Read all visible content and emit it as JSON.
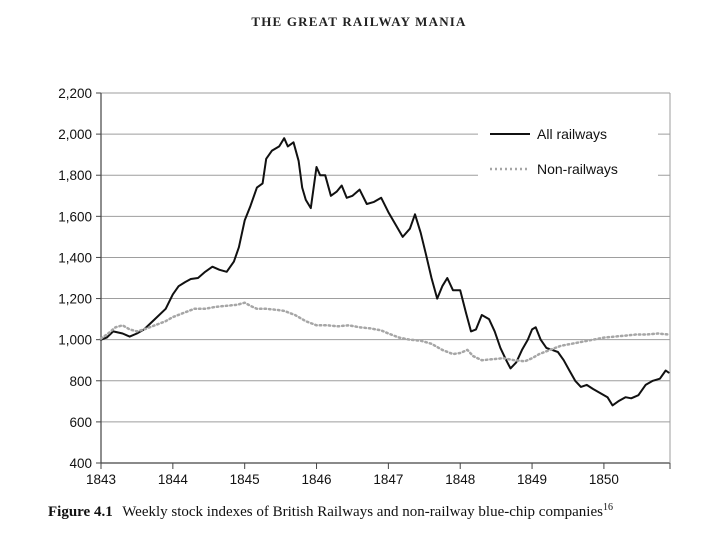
{
  "header": {
    "running_title": "THE GREAT RAILWAY MANIA"
  },
  "caption": {
    "figure_label": "Figure 4.1",
    "text": "Weekly stock indexes of British Railways and non-railway blue-chip companies",
    "footnote": "16"
  },
  "colors": {
    "railways": "#111111",
    "non_railways": "#a6a6a6",
    "grid": "#9e9e9e",
    "axis": "#444444"
  },
  "chart_data": {
    "type": "line",
    "title": "",
    "xlabel": "",
    "ylabel": "",
    "xlim": [
      1843,
      1850.92
    ],
    "ylim": [
      400,
      2200
    ],
    "x_ticks": [
      "1843",
      "1844",
      "1845",
      "1846",
      "1847",
      "1848",
      "1849",
      "1850"
    ],
    "y_ticks": [
      "400",
      "600",
      "800",
      "1,000",
      "1,200",
      "1,400",
      "1,600",
      "1,800",
      "2,000",
      "2,200"
    ],
    "grid": "horizontal",
    "legend": "top-right",
    "series": [
      {
        "name": "All railways",
        "style": "solid",
        "points": [
          [
            1843.0,
            1000
          ],
          [
            1843.08,
            1010
          ],
          [
            1843.17,
            1040
          ],
          [
            1843.3,
            1030
          ],
          [
            1843.4,
            1015
          ],
          [
            1843.5,
            1030
          ],
          [
            1843.6,
            1050
          ],
          [
            1843.75,
            1100
          ],
          [
            1843.9,
            1150
          ],
          [
            1844.0,
            1220
          ],
          [
            1844.08,
            1260
          ],
          [
            1844.17,
            1280
          ],
          [
            1844.25,
            1295
          ],
          [
            1844.35,
            1300
          ],
          [
            1844.45,
            1330
          ],
          [
            1844.55,
            1355
          ],
          [
            1844.65,
            1340
          ],
          [
            1844.75,
            1330
          ],
          [
            1844.85,
            1380
          ],
          [
            1844.92,
            1450
          ],
          [
            1845.0,
            1580
          ],
          [
            1845.08,
            1650
          ],
          [
            1845.17,
            1740
          ],
          [
            1845.25,
            1760
          ],
          [
            1845.3,
            1880
          ],
          [
            1845.38,
            1920
          ],
          [
            1845.48,
            1940
          ],
          [
            1845.55,
            1980
          ],
          [
            1845.6,
            1940
          ],
          [
            1845.68,
            1960
          ],
          [
            1845.75,
            1870
          ],
          [
            1845.8,
            1740
          ],
          [
            1845.85,
            1680
          ],
          [
            1845.92,
            1640
          ],
          [
            1846.0,
            1840
          ],
          [
            1846.05,
            1800
          ],
          [
            1846.12,
            1800
          ],
          [
            1846.2,
            1700
          ],
          [
            1846.28,
            1720
          ],
          [
            1846.35,
            1750
          ],
          [
            1846.42,
            1690
          ],
          [
            1846.5,
            1700
          ],
          [
            1846.6,
            1730
          ],
          [
            1846.7,
            1660
          ],
          [
            1846.8,
            1670
          ],
          [
            1846.9,
            1690
          ],
          [
            1847.0,
            1620
          ],
          [
            1847.1,
            1560
          ],
          [
            1847.2,
            1500
          ],
          [
            1847.3,
            1540
          ],
          [
            1847.37,
            1610
          ],
          [
            1847.45,
            1520
          ],
          [
            1847.52,
            1420
          ],
          [
            1847.6,
            1300
          ],
          [
            1847.68,
            1200
          ],
          [
            1847.75,
            1260
          ],
          [
            1847.82,
            1300
          ],
          [
            1847.9,
            1240
          ],
          [
            1848.0,
            1240
          ],
          [
            1848.08,
            1130
          ],
          [
            1848.15,
            1040
          ],
          [
            1848.22,
            1050
          ],
          [
            1848.3,
            1120
          ],
          [
            1848.4,
            1100
          ],
          [
            1848.48,
            1040
          ],
          [
            1848.56,
            960
          ],
          [
            1848.64,
            900
          ],
          [
            1848.7,
            860
          ],
          [
            1848.78,
            890
          ],
          [
            1848.86,
            950
          ],
          [
            1848.94,
            1000
          ],
          [
            1849.0,
            1050
          ],
          [
            1849.05,
            1060
          ],
          [
            1849.12,
            1000
          ],
          [
            1849.2,
            960
          ],
          [
            1849.28,
            950
          ],
          [
            1849.36,
            940
          ],
          [
            1849.44,
            900
          ],
          [
            1849.52,
            850
          ],
          [
            1849.6,
            800
          ],
          [
            1849.68,
            770
          ],
          [
            1849.76,
            780
          ],
          [
            1849.85,
            760
          ],
          [
            1849.95,
            740
          ],
          [
            1850.05,
            720
          ],
          [
            1850.12,
            680
          ],
          [
            1850.2,
            700
          ],
          [
            1850.3,
            720
          ],
          [
            1850.38,
            715
          ],
          [
            1850.48,
            730
          ],
          [
            1850.58,
            780
          ],
          [
            1850.68,
            800
          ],
          [
            1850.78,
            810
          ],
          [
            1850.86,
            850
          ],
          [
            1850.9,
            840
          ]
        ]
      },
      {
        "name": "Non-railways",
        "style": "dotted",
        "points": [
          [
            1843.0,
            1005
          ],
          [
            1843.1,
            1030
          ],
          [
            1843.2,
            1060
          ],
          [
            1843.3,
            1070
          ],
          [
            1843.4,
            1050
          ],
          [
            1843.5,
            1040
          ],
          [
            1843.6,
            1050
          ],
          [
            1843.75,
            1070
          ],
          [
            1843.9,
            1090
          ],
          [
            1844.0,
            1110
          ],
          [
            1844.15,
            1130
          ],
          [
            1844.3,
            1150
          ],
          [
            1844.45,
            1150
          ],
          [
            1844.6,
            1160
          ],
          [
            1844.75,
            1165
          ],
          [
            1844.9,
            1170
          ],
          [
            1845.0,
            1180
          ],
          [
            1845.08,
            1165
          ],
          [
            1845.17,
            1150
          ],
          [
            1845.3,
            1150
          ],
          [
            1845.45,
            1145
          ],
          [
            1845.55,
            1140
          ],
          [
            1845.7,
            1120
          ],
          [
            1845.85,
            1090
          ],
          [
            1846.0,
            1070
          ],
          [
            1846.15,
            1070
          ],
          [
            1846.3,
            1065
          ],
          [
            1846.45,
            1070
          ],
          [
            1846.6,
            1060
          ],
          [
            1846.75,
            1055
          ],
          [
            1846.9,
            1045
          ],
          [
            1847.0,
            1030
          ],
          [
            1847.15,
            1010
          ],
          [
            1847.3,
            1000
          ],
          [
            1847.45,
            995
          ],
          [
            1847.6,
            980
          ],
          [
            1847.75,
            950
          ],
          [
            1847.9,
            930
          ],
          [
            1848.0,
            935
          ],
          [
            1848.1,
            950
          ],
          [
            1848.18,
            920
          ],
          [
            1848.3,
            900
          ],
          [
            1848.45,
            905
          ],
          [
            1848.6,
            910
          ],
          [
            1848.75,
            900
          ],
          [
            1848.9,
            895
          ],
          [
            1849.0,
            910
          ],
          [
            1849.1,
            930
          ],
          [
            1849.25,
            950
          ],
          [
            1849.4,
            970
          ],
          [
            1849.55,
            980
          ],
          [
            1849.7,
            990
          ],
          [
            1849.85,
            1000
          ],
          [
            1850.0,
            1010
          ],
          [
            1850.15,
            1015
          ],
          [
            1850.3,
            1020
          ],
          [
            1850.45,
            1025
          ],
          [
            1850.6,
            1025
          ],
          [
            1850.75,
            1030
          ],
          [
            1850.9,
            1025
          ]
        ]
      }
    ]
  }
}
